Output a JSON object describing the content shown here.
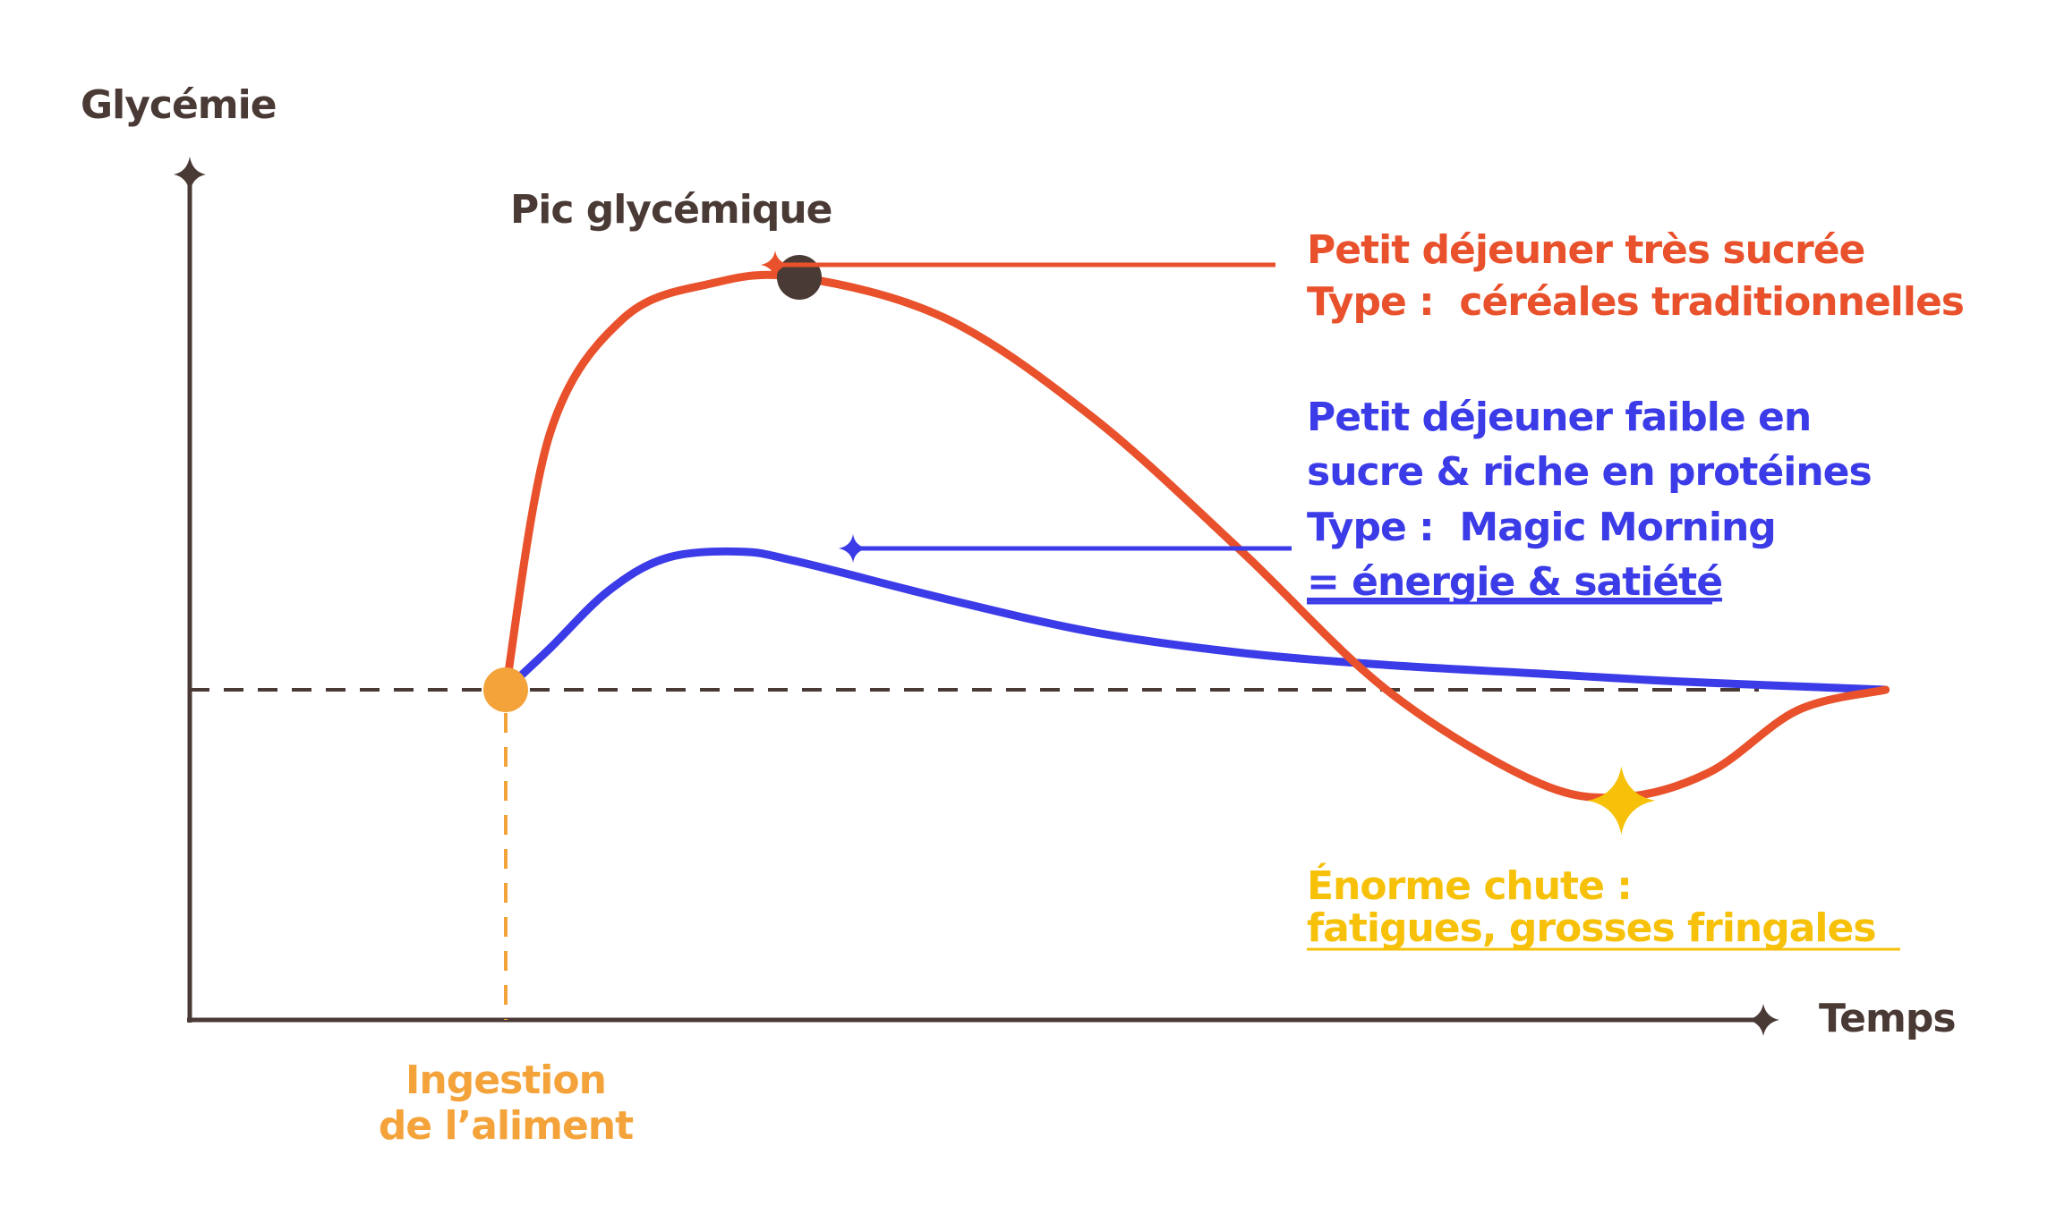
{
  "colors": {
    "axis": "#4a3a35",
    "sugary": "#e8512b",
    "protein": "#3b3be8",
    "ingestion": "#f4a33a",
    "crash": "#f6c108",
    "background": "#ffffff"
  },
  "chart_data": {
    "type": "line",
    "title": "",
    "xlabel": "Temps",
    "ylabel": "Glycémie",
    "grid": false,
    "baseline_y": 0,
    "series": [
      {
        "name": "Petit déjeuner très sucrée",
        "color": "#e8512b",
        "x": [
          0,
          0.15,
          0.4,
          0.7,
          1.0,
          1.5,
          2.0,
          2.5,
          3.0,
          3.5,
          3.8,
          4.1,
          4.4,
          4.7
        ],
        "y": [
          0,
          0.62,
          0.9,
          0.985,
          1.0,
          0.9,
          0.66,
          0.34,
          0.0,
          -0.22,
          -0.26,
          -0.2,
          -0.05,
          0.0
        ]
      },
      {
        "name": "Petit déjeuner faible en sucre & riche en protéines",
        "color": "#3b3be8",
        "x": [
          0,
          0.15,
          0.35,
          0.55,
          0.8,
          1.0,
          1.5,
          2.0,
          2.5,
          3.0,
          3.5,
          4.0,
          4.7
        ],
        "y": [
          0,
          0.1,
          0.24,
          0.32,
          0.335,
          0.31,
          0.22,
          0.14,
          0.09,
          0.06,
          0.04,
          0.02,
          0.0
        ]
      }
    ],
    "annotations": {
      "peak": "Pic glycémique",
      "sugary_line1": "Petit déjeuner très sucrée",
      "sugary_line2": "Type :  céréales traditionnelles",
      "protein_line1": "Petit déjeuner faible en",
      "protein_line2": "sucre & riche en protéines",
      "protein_line3": "Type :  Magic Morning",
      "protein_line4": "= énergie & satiété",
      "crash_line1": "Énorme chute :",
      "crash_line2": "fatigues, grosses fringales",
      "ingestion_line1": "Ingestion",
      "ingestion_line2": "de l’aliment"
    }
  }
}
